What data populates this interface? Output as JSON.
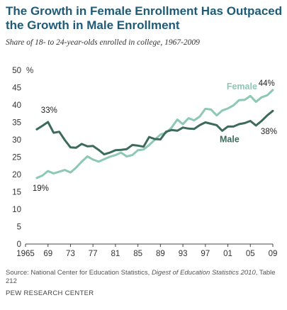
{
  "header": {
    "title": "The Growth in Female Enrollment Has Outpaced the Growth in Male Enrollment",
    "subtitle": "Share of 18- to 24-year-olds enrolled in college, 1967-2009"
  },
  "footer": {
    "source_prefix": "Source: National Center for Education Statistics, ",
    "source_publication": "Digest of Education Statistics 2010",
    "source_suffix": ", Table 212",
    "organization": "PEW RESEARCH CENTER"
  },
  "colors": {
    "female": "#8cc8b4",
    "male": "#3d6b5a",
    "axis": "#444444"
  },
  "chart_data": {
    "type": "line",
    "title": "The Growth in Female Enrollment Has Outpaced the Growth in Male Enrollment",
    "subtitle": "Share of 18- to 24-year-olds enrolled in college, 1967-2009",
    "xlim": [
      1965,
      2009
    ],
    "ylim": [
      0,
      50
    ],
    "x_ticks": [
      {
        "value": 1965,
        "label": "1965"
      },
      {
        "value": 1969,
        "label": "69"
      },
      {
        "value": 1973,
        "label": "73"
      },
      {
        "value": 1977,
        "label": "77"
      },
      {
        "value": 1981,
        "label": "81"
      },
      {
        "value": 1985,
        "label": "85"
      },
      {
        "value": 1989,
        "label": "89"
      },
      {
        "value": 1993,
        "label": "93"
      },
      {
        "value": 1997,
        "label": "97"
      },
      {
        "value": 2001,
        "label": "01"
      },
      {
        "value": 2005,
        "label": "05"
      },
      {
        "value": 2009,
        "label": "09"
      }
    ],
    "y_ticks": [
      {
        "value": 0,
        "label": "0"
      },
      {
        "value": 5,
        "label": "5"
      },
      {
        "value": 10,
        "label": "10"
      },
      {
        "value": 15,
        "label": "15"
      },
      {
        "value": 20,
        "label": "20"
      },
      {
        "value": 25,
        "label": "25"
      },
      {
        "value": 30,
        "label": "30"
      },
      {
        "value": 35,
        "label": "35"
      },
      {
        "value": 40,
        "label": "40"
      },
      {
        "value": 45,
        "label": "45"
      },
      {
        "value": 50,
        "label": "50"
      }
    ],
    "y_unit": "%",
    "grid": false,
    "x": [
      1967,
      1968,
      1969,
      1970,
      1971,
      1972,
      1973,
      1974,
      1975,
      1976,
      1977,
      1978,
      1979,
      1980,
      1981,
      1982,
      1983,
      1984,
      1985,
      1986,
      1987,
      1988,
      1989,
      1990,
      1991,
      1992,
      1993,
      1994,
      1995,
      1996,
      1997,
      1998,
      1999,
      2000,
      2001,
      2002,
      2003,
      2004,
      2005,
      2006,
      2007,
      2008,
      2009
    ],
    "series": [
      {
        "name": "Female",
        "color": "#8cc8b4",
        "values": [
          19,
          19.7,
          21,
          20.3,
          20.8,
          21.3,
          20.6,
          22,
          23.7,
          25.2,
          24.3,
          23.7,
          24.4,
          25.1,
          25.6,
          26.3,
          25.2,
          25.6,
          27,
          27.2,
          28.5,
          30,
          31.5,
          32,
          33.5,
          35.8,
          34.5,
          36.2,
          35.6,
          36.7,
          38.9,
          38.7,
          37,
          38.4,
          39,
          39.9,
          41.4,
          41.5,
          42.6,
          40.9,
          42.2,
          42.8,
          44.3
        ]
      },
      {
        "name": "Male",
        "color": "#3d6b5a",
        "values": [
          33,
          34,
          35.1,
          32,
          32.3,
          29.9,
          27.8,
          27.7,
          28.8,
          28.1,
          28.2,
          27.1,
          25.8,
          26.3,
          27,
          27.1,
          27.3,
          28.5,
          28.3,
          28,
          30.8,
          30.2,
          30.1,
          32.3,
          32.8,
          32.6,
          33.5,
          33.2,
          33.1,
          34.2,
          35,
          34.6,
          34.2,
          32.6,
          33.8,
          33.8,
          34.5,
          34.8,
          35.4,
          34.1,
          35.4,
          37,
          38.3
        ]
      }
    ],
    "annotations": [
      {
        "label": "33%",
        "series": "Male",
        "x": 1967
      },
      {
        "label": "19%",
        "series": "Female",
        "x": 1967
      },
      {
        "label": "44%",
        "series": "Female",
        "x": 2009
      },
      {
        "label": "38%",
        "series": "Male",
        "x": 2009
      }
    ]
  }
}
